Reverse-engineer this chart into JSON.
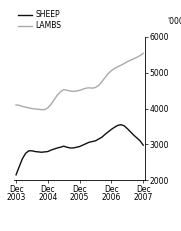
{
  "ylabel_right": "'000",
  "ylim": [
    2000,
    6000
  ],
  "yticks": [
    2000,
    3000,
    4000,
    5000,
    6000
  ],
  "ytick_labels": [
    "2000",
    "3000",
    "4000",
    "5000",
    "6000"
  ],
  "xtick_labels": [
    "Dec\n2003",
    "Dec\n2004",
    "Dec\n2005",
    "Dec\n2006",
    "Dec\n2007"
  ],
  "xtick_positions": [
    0,
    1,
    2,
    3,
    4
  ],
  "legend": [
    {
      "label": "SHEEP",
      "color": "#111111"
    },
    {
      "label": "LAMBS",
      "color": "#aaaaaa"
    }
  ],
  "sheep_x": [
    0.0,
    0.1,
    0.2,
    0.3,
    0.4,
    0.5,
    0.6,
    0.7,
    0.8,
    0.9,
    1.0,
    1.1,
    1.2,
    1.3,
    1.4,
    1.5,
    1.6,
    1.7,
    1.8,
    1.9,
    2.0,
    2.1,
    2.2,
    2.3,
    2.4,
    2.5,
    2.6,
    2.7,
    2.8,
    2.9,
    3.0,
    3.1,
    3.2,
    3.3,
    3.4,
    3.5,
    3.6,
    3.7,
    3.8,
    3.9,
    4.0
  ],
  "sheep_y": [
    2150,
    2380,
    2600,
    2750,
    2820,
    2820,
    2800,
    2790,
    2780,
    2790,
    2800,
    2840,
    2870,
    2900,
    2920,
    2950,
    2920,
    2900,
    2900,
    2920,
    2940,
    2980,
    3020,
    3060,
    3080,
    3100,
    3150,
    3200,
    3280,
    3350,
    3420,
    3480,
    3530,
    3550,
    3520,
    3440,
    3350,
    3260,
    3180,
    3100,
    2980
  ],
  "lambs_x": [
    0.0,
    0.1,
    0.2,
    0.3,
    0.4,
    0.5,
    0.6,
    0.7,
    0.8,
    0.9,
    1.0,
    1.1,
    1.2,
    1.3,
    1.4,
    1.5,
    1.6,
    1.7,
    1.8,
    1.9,
    2.0,
    2.1,
    2.2,
    2.3,
    2.4,
    2.5,
    2.6,
    2.7,
    2.8,
    2.9,
    3.0,
    3.1,
    3.2,
    3.3,
    3.4,
    3.5,
    3.6,
    3.7,
    3.8,
    3.9,
    4.0
  ],
  "lambs_y": [
    4100,
    4090,
    4060,
    4040,
    4020,
    4000,
    3990,
    3980,
    3970,
    3970,
    4020,
    4120,
    4250,
    4380,
    4470,
    4530,
    4510,
    4490,
    4480,
    4490,
    4510,
    4540,
    4570,
    4580,
    4570,
    4590,
    4650,
    4750,
    4870,
    4980,
    5060,
    5120,
    5170,
    5210,
    5260,
    5310,
    5350,
    5390,
    5430,
    5480,
    5540
  ],
  "background_color": "#ffffff",
  "line_width": 1.0
}
